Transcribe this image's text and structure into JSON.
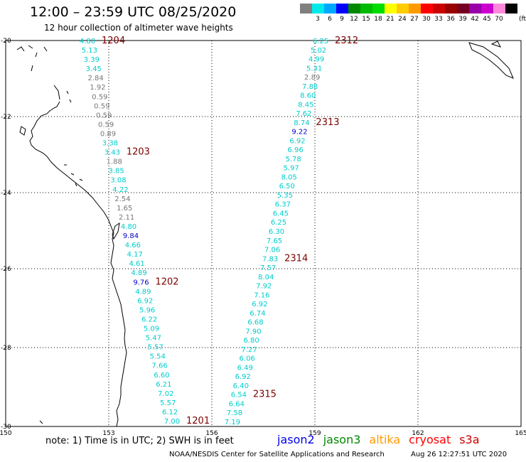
{
  "title": "12:00 – 23:59 UTC 08/25/2020",
  "subtitle": "12 hour collection of altimeter wave heights",
  "legend": {
    "unit": "(ft)",
    "swatches": [
      {
        "label": "",
        "color": "#808080"
      },
      {
        "label": "3",
        "color": "#00eaea"
      },
      {
        "label": "6",
        "color": "#00a8ff"
      },
      {
        "label": "9",
        "color": "#0000ff"
      },
      {
        "label": "12",
        "color": "#008800"
      },
      {
        "label": "15",
        "color": "#00bb00"
      },
      {
        "label": "18",
        "color": "#00dd00"
      },
      {
        "label": "21",
        "color": "#ffff00"
      },
      {
        "label": "24",
        "color": "#ffcc00"
      },
      {
        "label": "27",
        "color": "#ff9900"
      },
      {
        "label": "30",
        "color": "#ff0000"
      },
      {
        "label": "33",
        "color": "#cc0000"
      },
      {
        "label": "36",
        "color": "#990000"
      },
      {
        "label": "39",
        "color": "#770022"
      },
      {
        "label": "42",
        "color": "#9900aa"
      },
      {
        "label": "45",
        "color": "#cc00cc"
      },
      {
        "label": "70",
        "color": "#ff88dd"
      },
      {
        "label": "",
        "color": "#000000"
      }
    ]
  },
  "axes": {
    "lon_ticks": [
      "150",
      "153",
      "156",
      "159",
      "162",
      "165"
    ],
    "lat_ticks": [
      "-20",
      "-22",
      "-24",
      "-26",
      "-28",
      "-30"
    ]
  },
  "colors": {
    "gray": "#777777",
    "cyan": "#00cccc",
    "blue": "#0000cc",
    "pass": "#7a0000"
  },
  "track_west": {
    "values": [
      "4.80",
      "5.13",
      "3.39",
      "3.45",
      "2.84",
      "1.92",
      "0.59",
      "0.59",
      "0.59",
      "0.59",
      "0.89",
      "3.38",
      "3.43",
      "1.88",
      "3.85",
      "3.08",
      "4.22",
      "2.54",
      "1.65",
      "2.11",
      "4.80",
      "9.84",
      "4.66",
      "4.17",
      "4.61",
      "4.89",
      "9.76",
      "4.89",
      "6.92",
      "5.96",
      "6.22",
      "5.09",
      "5.47",
      "5.57",
      "5.54",
      "7.66",
      "6.60",
      "6.21",
      "7.02",
      "5.57",
      "6.12",
      "7.00"
    ],
    "color_keys": [
      "cyan",
      "cyan",
      "cyan",
      "cyan",
      "gray",
      "gray",
      "gray",
      "gray",
      "gray",
      "gray",
      "gray",
      "cyan",
      "cyan",
      "gray",
      "cyan",
      "cyan",
      "cyan",
      "gray",
      "gray",
      "gray",
      "cyan",
      "blue",
      "cyan",
      "cyan",
      "cyan",
      "cyan",
      "blue",
      "cyan",
      "cyan",
      "cyan",
      "cyan",
      "cyan",
      "cyan",
      "cyan",
      "cyan",
      "cyan",
      "cyan",
      "cyan",
      "cyan",
      "cyan",
      "cyan",
      "cyan"
    ]
  },
  "track_east": {
    "values": [
      "6.25",
      "5.02",
      "4.99",
      "5.31",
      "2.89",
      "7.88",
      "8.60",
      "8.45",
      "7.62",
      "8.74",
      "9.22",
      "6.92",
      "6.96",
      "5.78",
      "5.97",
      "8.05",
      "6.50",
      "5.35",
      "6.37",
      "6.45",
      "6.25",
      "6.30",
      "7.65",
      "7.06",
      "7.83",
      "7.57",
      "8.04",
      "7.92",
      "7.16",
      "6.92",
      "6.74",
      "6.68",
      "7.90",
      "6.80",
      "7.27",
      "6.06",
      "6.49",
      "6.92",
      "6.40",
      "6.54",
      "6.64",
      "7.58",
      "7.19"
    ],
    "color_keys": [
      "cyan",
      "cyan",
      "cyan",
      "cyan",
      "gray",
      "cyan",
      "cyan",
      "cyan",
      "cyan",
      "cyan",
      "blue",
      "cyan",
      "cyan",
      "cyan",
      "cyan",
      "cyan",
      "cyan",
      "cyan",
      "cyan",
      "cyan",
      "cyan",
      "cyan",
      "cyan",
      "cyan",
      "cyan",
      "cyan",
      "cyan",
      "cyan",
      "cyan",
      "cyan",
      "cyan",
      "cyan",
      "cyan",
      "cyan",
      "cyan",
      "cyan",
      "cyan",
      "cyan",
      "cyan",
      "cyan",
      "cyan",
      "cyan",
      "cyan"
    ]
  },
  "pass_labels": [
    {
      "text": "1204",
      "track": "west",
      "index": 0
    },
    {
      "text": "1203",
      "track": "west",
      "index": 12
    },
    {
      "text": "1202",
      "track": "west",
      "index": 26
    },
    {
      "text": "1201",
      "track": "west",
      "index": 41
    },
    {
      "text": "2312",
      "track": "east",
      "index": 0
    },
    {
      "text": "2313",
      "track": "east",
      "index": 9
    },
    {
      "text": "2314",
      "track": "east",
      "index": 24
    },
    {
      "text": "2315",
      "track": "east",
      "index": 39
    }
  ],
  "footer": {
    "note": "note:  1) Time is in UTC;  2) SWH is in feet",
    "credit": "NOAA/NESDIS Center for Satellite Applications and Research",
    "timestamp": "Aug 26 12:27:51 UTC 2020"
  },
  "missions": [
    {
      "name": "jason2",
      "color": "#0000ee"
    },
    {
      "name": "jason3",
      "color": "#008800"
    },
    {
      "name": "altika",
      "color": "#ff9900"
    },
    {
      "name": "cryosat",
      "color": "#ff0000"
    },
    {
      "name": "s3a",
      "color": "#cc0000"
    }
  ]
}
